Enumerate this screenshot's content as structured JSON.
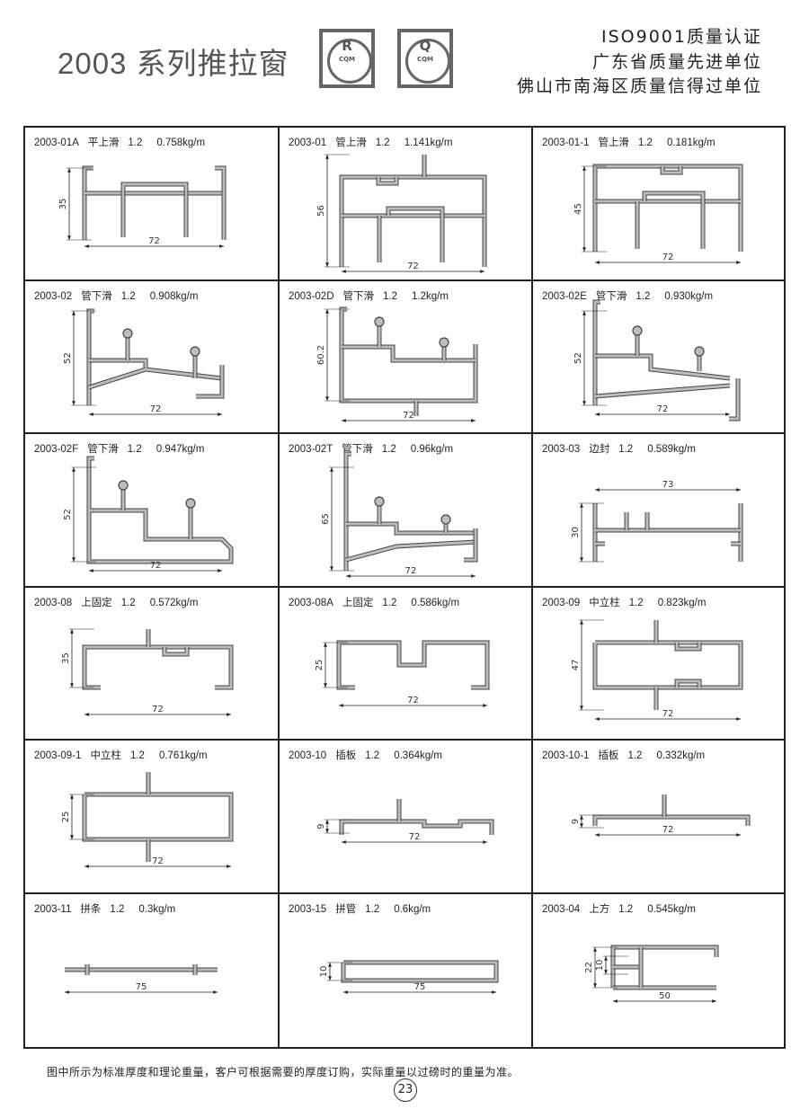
{
  "header": {
    "title": "2003 系列推拉窗",
    "logos": [
      {
        "symbol": "R",
        "text": "CQM"
      },
      {
        "symbol": "Q",
        "text": "CQM"
      }
    ],
    "certifications": [
      "ISO9001质量认证",
      "广东省质量先进单位",
      "佛山市南海区质量信得过单位"
    ]
  },
  "cells": [
    {
      "code": "2003-01A",
      "name": "平上滑",
      "thickness": "1.2",
      "weight": "0.758kg/m",
      "dims": [
        "35",
        "72"
      ]
    },
    {
      "code": "2003-01",
      "name": "管上滑",
      "thickness": "1.2",
      "weight": "1.141kg/m",
      "dims": [
        "56",
        "72"
      ]
    },
    {
      "code": "2003-01-1",
      "name": "管上滑",
      "thickness": "1.2",
      "weight": "0.181kg/m",
      "dims": [
        "45",
        "72"
      ]
    },
    {
      "code": "2003-02",
      "name": "管下滑",
      "thickness": "1.2",
      "weight": "0.908kg/m",
      "dims": [
        "52",
        "72"
      ]
    },
    {
      "code": "2003-02D",
      "name": "管下滑",
      "thickness": "1.2",
      "weight": "1.2kg/m",
      "dims": [
        "60.2",
        "72"
      ]
    },
    {
      "code": "2003-02E",
      "name": "管下滑",
      "thickness": "1.2",
      "weight": "0.930kg/m",
      "dims": [
        "52",
        "72"
      ]
    },
    {
      "code": "2003-02F",
      "name": "管下滑",
      "thickness": "1.2",
      "weight": "0.947kg/m",
      "dims": [
        "52",
        "72"
      ]
    },
    {
      "code": "2003-02T",
      "name": "管下滑",
      "thickness": "1.2",
      "weight": "0.96kg/m",
      "dims": [
        "65",
        "72"
      ]
    },
    {
      "code": "2003-03",
      "name": "边封",
      "thickness": "1.2",
      "weight": "0.589kg/m",
      "dims": [
        "30",
        "73"
      ]
    },
    {
      "code": "2003-08",
      "name": "上固定",
      "thickness": "1.2",
      "weight": "0.572kg/m",
      "dims": [
        "35",
        "72"
      ]
    },
    {
      "code": "2003-08A",
      "name": "上固定",
      "thickness": "1.2",
      "weight": "0.586kg/m",
      "dims": [
        "25",
        "72"
      ]
    },
    {
      "code": "2003-09",
      "name": "中立柱",
      "thickness": "1.2",
      "weight": "0.823kg/m",
      "dims": [
        "47",
        "72"
      ]
    },
    {
      "code": "2003-09-1",
      "name": "中立柱",
      "thickness": "1.2",
      "weight": "0.761kg/m",
      "dims": [
        "25",
        "72"
      ]
    },
    {
      "code": "2003-10",
      "name": "插板",
      "thickness": "1.2",
      "weight": "0.364kg/m",
      "dims": [
        "9",
        "72"
      ]
    },
    {
      "code": "2003-10-1",
      "name": "插板",
      "thickness": "1.2",
      "weight": "0.332kg/m",
      "dims": [
        "9",
        "72"
      ]
    },
    {
      "code": "2003-11",
      "name": "拼条",
      "thickness": "1.2",
      "weight": "0.3kg/m",
      "dims": [
        "75"
      ]
    },
    {
      "code": "2003-15",
      "name": "拼管",
      "thickness": "1.2",
      "weight": "0.6kg/m",
      "dims": [
        "10",
        "75"
      ]
    },
    {
      "code": "2003-04",
      "name": "上方",
      "thickness": "1.2",
      "weight": "0.545kg/m",
      "dims": [
        "22",
        "10",
        "50"
      ]
    }
  ],
  "footer": {
    "note": "图中所示为标准厚度和理论重量，客户可根据需要的厚度订购，实际重量以过磅时的重量为准。",
    "page_number": "23"
  }
}
